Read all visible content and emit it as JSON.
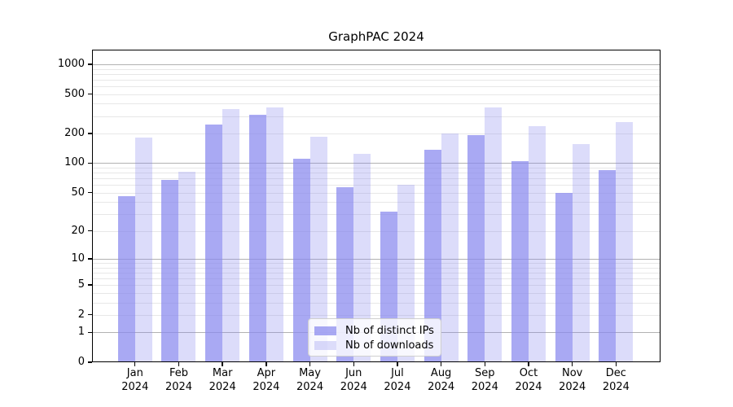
{
  "chart_data": {
    "type": "bar",
    "title": "GraphPAC 2024",
    "yscale": "log10(value+1)",
    "ylim": [
      0,
      1400
    ],
    "grid": true,
    "legend_position": "lower center",
    "y_ticks": [
      0,
      1,
      2,
      5,
      10,
      20,
      50,
      100,
      200,
      500,
      1000
    ],
    "categories": [
      "Jan",
      "Feb",
      "Mar",
      "Apr",
      "May",
      "Jun",
      "Jul",
      "Aug",
      "Sep",
      "Oct",
      "Nov",
      "Dec"
    ],
    "x_tick_second_line": "2024",
    "series": [
      {
        "name": "Nb of distinct IPs",
        "color": "rgba(136,136,238,0.72)",
        "values": [
          46,
          68,
          246,
          310,
          110,
          57,
          32,
          138,
          193,
          104,
          50,
          85
        ]
      },
      {
        "name": "Nb of downloads",
        "color": "rgba(136,136,238,0.29)",
        "values": [
          183,
          82,
          350,
          365,
          184,
          124,
          60,
          200,
          370,
          237,
          156,
          262
        ]
      }
    ]
  },
  "colors": {
    "major_grid": "#b2b2b2",
    "minor_grid": "#e7e7e7",
    "axis": "#000000",
    "background": "#ffffff"
  }
}
